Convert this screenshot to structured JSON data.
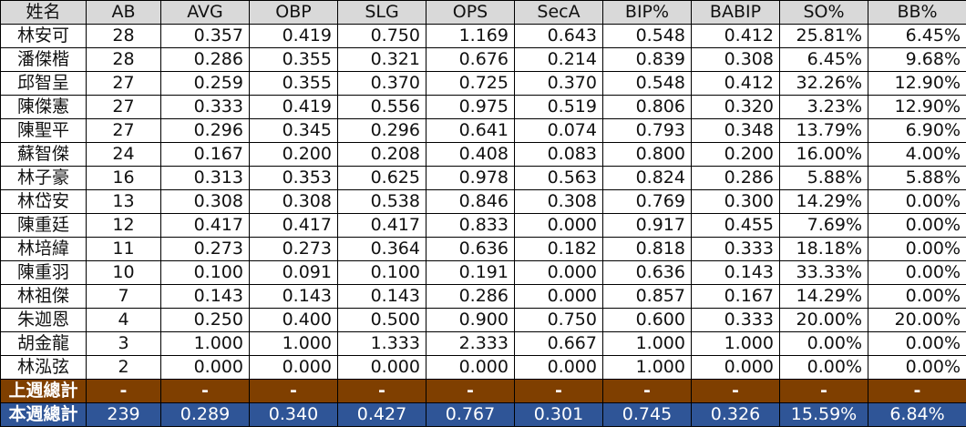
{
  "headers": [
    "姓名",
    "AB",
    "AVG",
    "OBP",
    "SLG",
    "OPS",
    "SecA",
    "BIP%",
    "BABIP",
    "SO%",
    "BB%"
  ],
  "rows": [
    [
      "林安可",
      "28",
      "0.357",
      "0.419",
      "0.750",
      "1.169",
      "0.643",
      "0.548",
      "0.412",
      "25.81%",
      "6.45%"
    ],
    [
      "潘傑楷",
      "28",
      "0.286",
      "0.355",
      "0.321",
      "0.676",
      "0.214",
      "0.839",
      "0.308",
      "6.45%",
      "9.68%"
    ],
    [
      "邱智呈",
      "27",
      "0.259",
      "0.355",
      "0.370",
      "0.725",
      "0.370",
      "0.548",
      "0.412",
      "32.26%",
      "12.90%"
    ],
    [
      "陳傑憲",
      "27",
      "0.333",
      "0.419",
      "0.556",
      "0.975",
      "0.519",
      "0.806",
      "0.320",
      "3.23%",
      "12.90%"
    ],
    [
      "陳聖平",
      "27",
      "0.296",
      "0.345",
      "0.296",
      "0.641",
      "0.074",
      "0.793",
      "0.348",
      "13.79%",
      "6.90%"
    ],
    [
      "蘇智傑",
      "24",
      "0.167",
      "0.200",
      "0.208",
      "0.408",
      "0.083",
      "0.800",
      "0.200",
      "16.00%",
      "4.00%"
    ],
    [
      "林子豪",
      "16",
      "0.313",
      "0.353",
      "0.625",
      "0.978",
      "0.563",
      "0.824",
      "0.286",
      "5.88%",
      "5.88%"
    ],
    [
      "林岱安",
      "13",
      "0.308",
      "0.308",
      "0.538",
      "0.846",
      "0.308",
      "0.769",
      "0.300",
      "14.29%",
      "0.00%"
    ],
    [
      "陳重廷",
      "12",
      "0.417",
      "0.417",
      "0.417",
      "0.833",
      "0.000",
      "0.917",
      "0.455",
      "7.69%",
      "0.00%"
    ],
    [
      "林培緯",
      "11",
      "0.273",
      "0.273",
      "0.364",
      "0.636",
      "0.182",
      "0.818",
      "0.333",
      "18.18%",
      "0.00%"
    ],
    [
      "陳重羽",
      "10",
      "0.100",
      "0.091",
      "0.100",
      "0.191",
      "0.000",
      "0.636",
      "0.143",
      "33.33%",
      "0.00%"
    ],
    [
      "林祖傑",
      "7",
      "0.143",
      "0.143",
      "0.143",
      "0.286",
      "0.000",
      "0.857",
      "0.167",
      "14.29%",
      "0.00%"
    ],
    [
      "朱迦恩",
      "4",
      "0.250",
      "0.400",
      "0.500",
      "0.900",
      "0.750",
      "0.600",
      "0.333",
      "20.00%",
      "20.00%"
    ],
    [
      "胡金龍",
      "3",
      "1.000",
      "1.000",
      "1.333",
      "2.333",
      "0.667",
      "1.000",
      "1.000",
      "0.00%",
      "0.00%"
    ],
    [
      "林泓弦",
      "2",
      "0.000",
      "0.000",
      "0.000",
      "0.000",
      "0.000",
      "1.000",
      "0.000",
      "0.00%",
      "0.00%"
    ]
  ],
  "last_week": [
    "上週總計",
    "-",
    "-",
    "-",
    "-",
    "-",
    "-",
    "-",
    "-",
    "-",
    "-"
  ],
  "this_week": [
    "本週總計",
    "239",
    "0.289",
    "0.340",
    "0.427",
    "0.767",
    "0.301",
    "0.745",
    "0.326",
    "15.59%",
    "6.84%"
  ],
  "colors": {
    "header_bg": "#d9d9d9",
    "last_week_bg": "#7f3f00",
    "this_week_bg": "#2f5597"
  }
}
